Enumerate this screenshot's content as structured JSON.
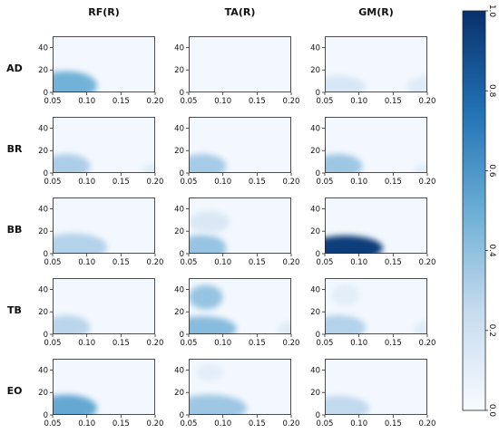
{
  "chart_data": {
    "type": "heatmap",
    "grid": false,
    "legend_placement": "right",
    "colormap": {
      "low": "#f7fbff",
      "mid": "#6baed6",
      "high": "#08306b"
    },
    "col_labels": [
      "RF(R)",
      "TA(R)",
      "GM(R)"
    ],
    "row_labels": [
      "AD",
      "BR",
      "BB",
      "TB",
      "EO"
    ],
    "xlim": [
      0.05,
      0.2
    ],
    "ylim": [
      0,
      50
    ],
    "x_ticks": [
      "0.05",
      "0.10",
      "0.15",
      "0.20"
    ],
    "y_ticks": [
      "0",
      "20",
      "40"
    ],
    "colorbar": {
      "range": [
        0.0,
        1.0
      ],
      "ticks": [
        "0.0",
        "0.2",
        "0.4",
        "0.6",
        "0.8",
        "1.0"
      ]
    },
    "panels": [
      {
        "row": "AD",
        "col": "RF(R)",
        "blobs": [
          {
            "x": 0.07,
            "y": 6,
            "rx": 0.045,
            "ry": 13,
            "v": 0.48
          }
        ]
      },
      {
        "row": "AD",
        "col": "TA(R)",
        "blobs": []
      },
      {
        "row": "AD",
        "col": "GM(R)",
        "blobs": [
          {
            "x": 0.07,
            "y": 5,
            "rx": 0.04,
            "ry": 10,
            "v": 0.16
          },
          {
            "x": 0.2,
            "y": 5,
            "rx": 0.03,
            "ry": 10,
            "v": 0.12
          }
        ]
      },
      {
        "row": "BR",
        "col": "RF(R)",
        "blobs": [
          {
            "x": 0.07,
            "y": 6,
            "rx": 0.035,
            "ry": 11,
            "v": 0.32
          },
          {
            "x": 0.2,
            "y": 2,
            "rx": 0.02,
            "ry": 6,
            "v": 0.12
          }
        ]
      },
      {
        "row": "BR",
        "col": "TA(R)",
        "blobs": [
          {
            "x": 0.07,
            "y": 6,
            "rx": 0.035,
            "ry": 11,
            "v": 0.34
          }
        ]
      },
      {
        "row": "BR",
        "col": "GM(R)",
        "blobs": [
          {
            "x": 0.07,
            "y": 6,
            "rx": 0.035,
            "ry": 11,
            "v": 0.36
          },
          {
            "x": 0.2,
            "y": 2,
            "rx": 0.02,
            "ry": 6,
            "v": 0.1
          }
        ]
      },
      {
        "row": "BB",
        "col": "RF(R)",
        "blobs": [
          {
            "x": 0.08,
            "y": 6,
            "rx": 0.05,
            "ry": 12,
            "v": 0.3
          }
        ]
      },
      {
        "row": "BB",
        "col": "TA(R)",
        "blobs": [
          {
            "x": 0.07,
            "y": 5,
            "rx": 0.035,
            "ry": 12,
            "v": 0.38
          },
          {
            "x": 0.08,
            "y": 28,
            "rx": 0.03,
            "ry": 10,
            "v": 0.15
          }
        ]
      },
      {
        "row": "BB",
        "col": "GM(R)",
        "blobs": [
          {
            "x": 0.08,
            "y": 5,
            "rx": 0.055,
            "ry": 11,
            "v": 0.95
          }
        ]
      },
      {
        "row": "TB",
        "col": "RF(R)",
        "blobs": [
          {
            "x": 0.07,
            "y": 6,
            "rx": 0.035,
            "ry": 11,
            "v": 0.28
          }
        ]
      },
      {
        "row": "TB",
        "col": "TA(R)",
        "blobs": [
          {
            "x": 0.07,
            "y": 5,
            "rx": 0.05,
            "ry": 11,
            "v": 0.42
          },
          {
            "x": 0.075,
            "y": 33,
            "rx": 0.025,
            "ry": 11,
            "v": 0.38
          },
          {
            "x": 0.2,
            "y": 4,
            "rx": 0.02,
            "ry": 8,
            "v": 0.12
          }
        ]
      },
      {
        "row": "TB",
        "col": "GM(R)",
        "blobs": [
          {
            "x": 0.07,
            "y": 6,
            "rx": 0.04,
            "ry": 11,
            "v": 0.3
          },
          {
            "x": 0.08,
            "y": 35,
            "rx": 0.02,
            "ry": 10,
            "v": 0.1
          },
          {
            "x": 0.2,
            "y": 4,
            "rx": 0.02,
            "ry": 8,
            "v": 0.12
          }
        ]
      },
      {
        "row": "EO",
        "col": "RF(R)",
        "blobs": [
          {
            "x": 0.07,
            "y": 6,
            "rx": 0.045,
            "ry": 12,
            "v": 0.52
          }
        ]
      },
      {
        "row": "EO",
        "col": "TA(R)",
        "blobs": [
          {
            "x": 0.08,
            "y": 6,
            "rx": 0.055,
            "ry": 12,
            "v": 0.36
          },
          {
            "x": 0.08,
            "y": 38,
            "rx": 0.02,
            "ry": 8,
            "v": 0.1
          }
        ]
      },
      {
        "row": "EO",
        "col": "GM(R)",
        "blobs": [
          {
            "x": 0.07,
            "y": 6,
            "rx": 0.045,
            "ry": 11,
            "v": 0.26
          }
        ]
      }
    ]
  }
}
